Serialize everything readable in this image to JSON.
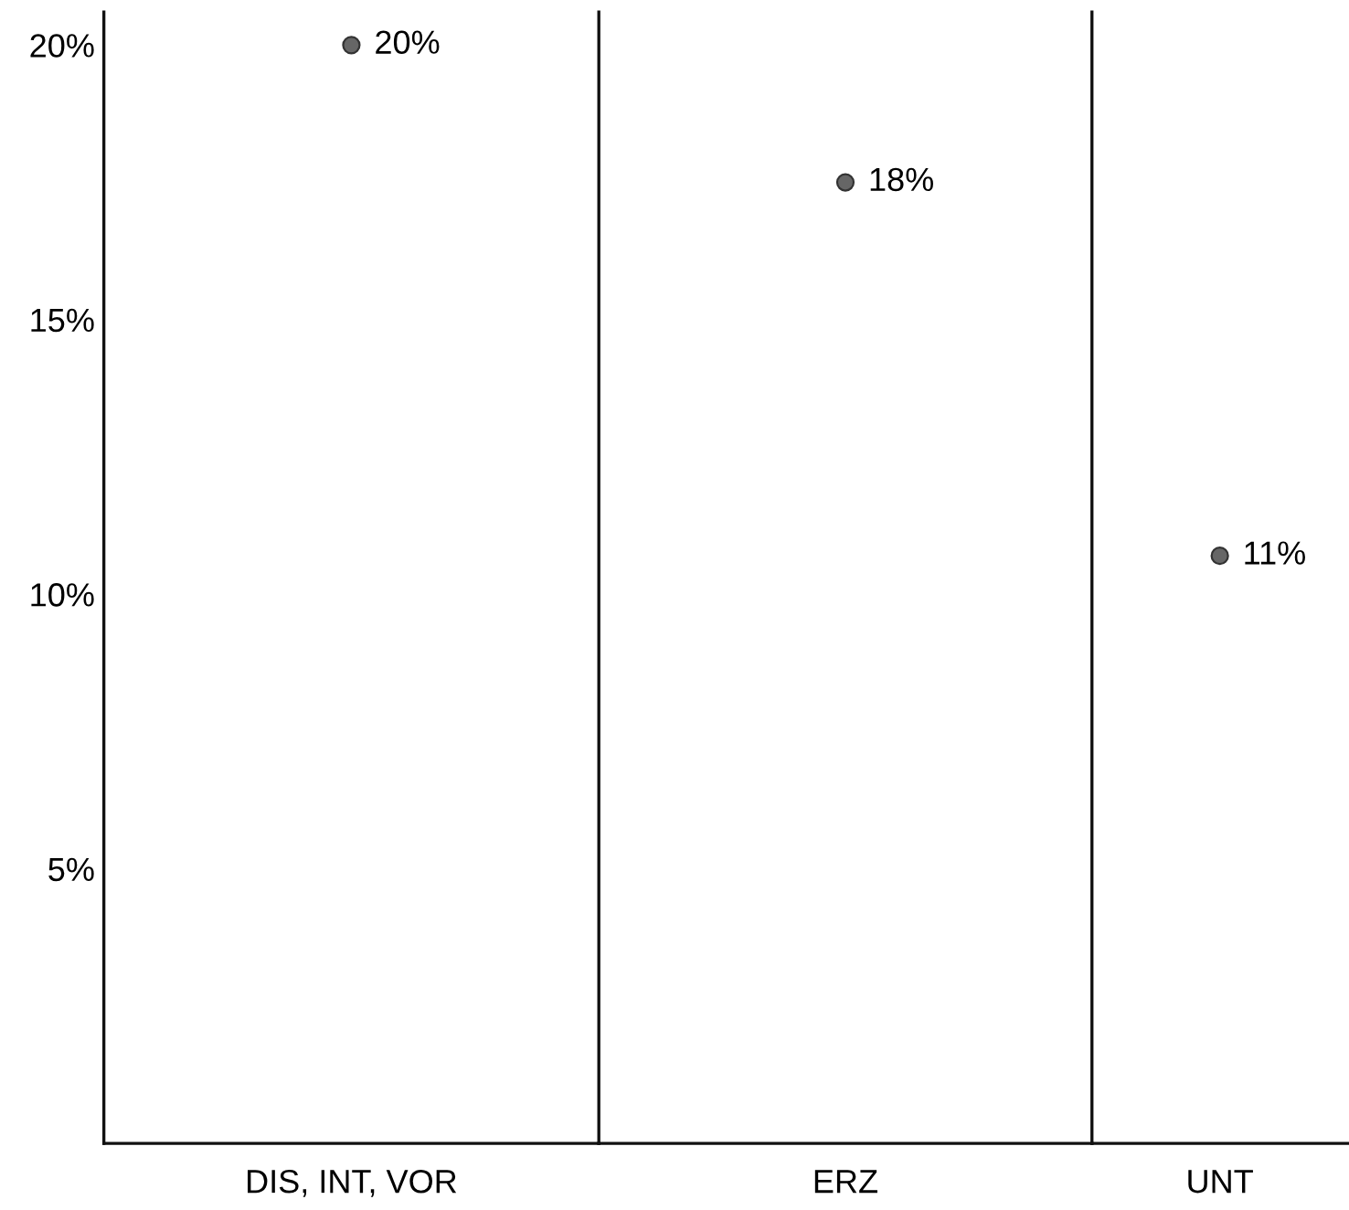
{
  "chart_data": [
    {
      "type": "scatter",
      "categories": [
        "DIS, INT, VOR"
      ],
      "values": [
        20
      ],
      "value_labels": [
        "20%"
      ],
      "color": "#666666",
      "marker": "circle",
      "ylim": [
        0,
        20.6
      ],
      "yticks": [
        {
          "value": 5,
          "label": "5%"
        },
        {
          "value": 10,
          "label": "10%"
        },
        {
          "value": 15,
          "label": "15%"
        },
        {
          "value": 20,
          "label": "20%"
        }
      ],
      "grid": false,
      "legend": false
    },
    {
      "type": "scatter",
      "categories": [
        "ERZ"
      ],
      "values": [
        17.5
      ],
      "value_labels": [
        "18%"
      ],
      "color": "#666666",
      "marker": "circle",
      "ylim": [
        0,
        20.6
      ],
      "tick_labels": "x",
      "grid": false,
      "legend": false
    },
    {
      "type": "scatter",
      "categories": [
        "UNT"
      ],
      "values": [
        10.7
      ],
      "value_labels": [
        "11%"
      ],
      "color": "#666666",
      "marker": "circle",
      "ylim": [
        0,
        20.6
      ],
      "tick_labels": "x",
      "grid": false,
      "legend": false
    }
  ]
}
